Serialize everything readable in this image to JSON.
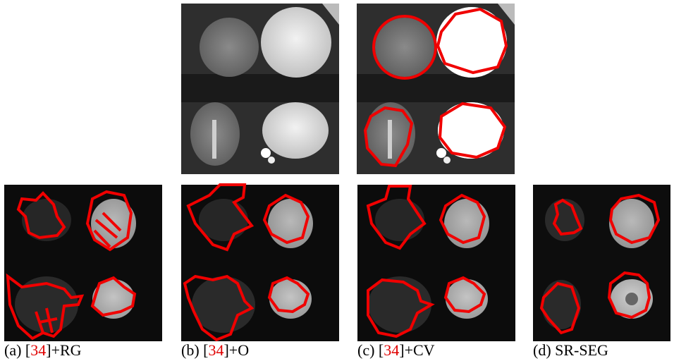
{
  "captions": [
    {
      "prefix": "(a) [",
      "ref": "34",
      "suffix": "]+RG"
    },
    {
      "prefix": "(b) [",
      "ref": "34",
      "suffix": "]+O"
    },
    {
      "prefix": "(c) [",
      "ref": "34",
      "suffix": "]+CV"
    },
    {
      "prefix": "(d) SR-SEG",
      "ref": null,
      "suffix": null
    }
  ]
}
